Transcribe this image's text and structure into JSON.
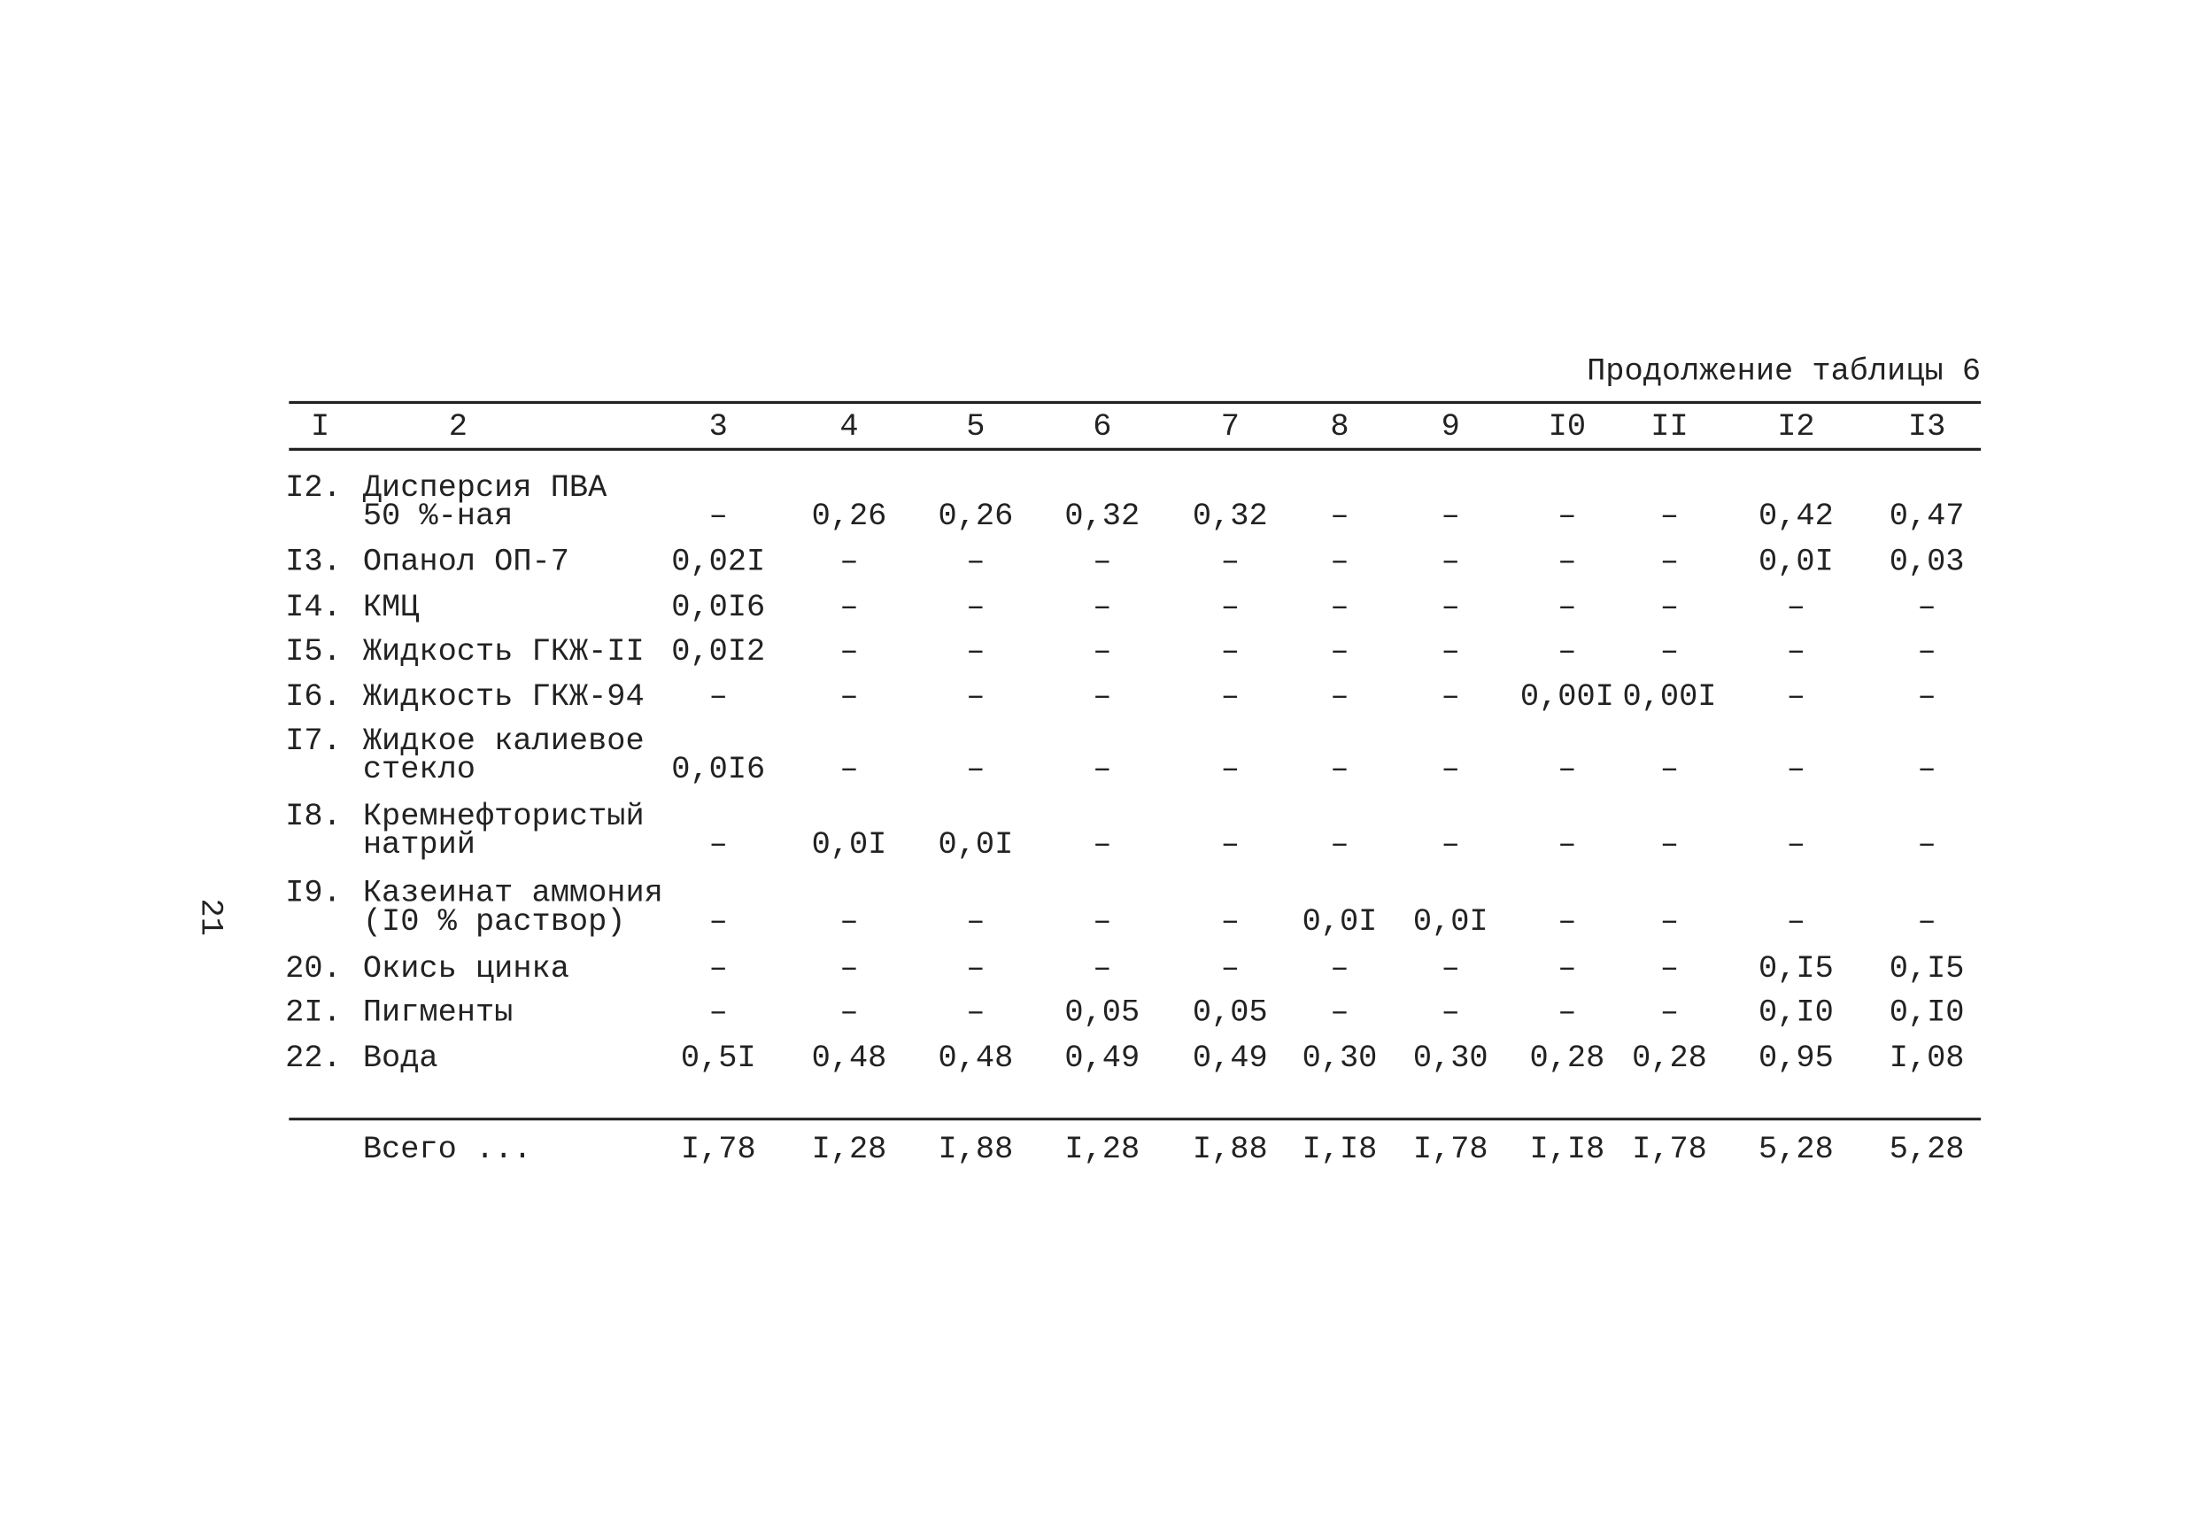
{
  "header": {
    "caption": "Продолжение таблицы 6",
    "page_number": "21"
  },
  "table": {
    "columns": [
      "I",
      "2",
      "3",
      "4",
      "5",
      "6",
      "7",
      "8",
      "9",
      "I0",
      "II",
      "I2",
      "I3"
    ],
    "rows": [
      {
        "number": "I2.",
        "name": [
          "Дисперсия ПВА",
          "50 %-ная"
        ],
        "values": [
          "–",
          "0,26",
          "0,26",
          "0,32",
          "0,32",
          "–",
          "–",
          "–",
          "–",
          "0,42",
          "0,47"
        ]
      },
      {
        "number": "I3.",
        "name": [
          "Опанол ОП-7"
        ],
        "values": [
          "0,02I",
          "–",
          "–",
          "–",
          "–",
          "–",
          "–",
          "–",
          "–",
          "0,0I",
          "0,03"
        ]
      },
      {
        "number": "I4.",
        "name": [
          "КМЦ"
        ],
        "values": [
          "0,0I6",
          "–",
          "–",
          "–",
          "–",
          "–",
          "–",
          "–",
          "–",
          "–",
          "–"
        ]
      },
      {
        "number": "I5.",
        "name": [
          "Жидкость ГКЖ-II"
        ],
        "values": [
          "0,0I2",
          "–",
          "–",
          "–",
          "–",
          "–",
          "–",
          "–",
          "–",
          "–",
          "–"
        ]
      },
      {
        "number": "I6.",
        "name": [
          "Жидкость ГКЖ-94"
        ],
        "values": [
          "–",
          "–",
          "–",
          "–",
          "–",
          "–",
          "–",
          "0,00I",
          "0,00I",
          "–",
          "–"
        ]
      },
      {
        "number": "I7.",
        "name": [
          "Жидкое калиевое",
          "стекло"
        ],
        "values": [
          "0,0I6",
          "–",
          "–",
          "–",
          "–",
          "–",
          "–",
          "–",
          "–",
          "–",
          "–"
        ]
      },
      {
        "number": "I8.",
        "name": [
          "Кремнефтористый",
          "натрий"
        ],
        "values": [
          "–",
          "0,0I",
          "0,0I",
          "–",
          "–",
          "–",
          "–",
          "–",
          "–",
          "–",
          "–"
        ]
      },
      {
        "number": "I9.",
        "name": [
          "Казеинат аммония",
          "(I0 % раствор)"
        ],
        "values": [
          "–",
          "–",
          "–",
          "–",
          "–",
          "0,0I",
          "0,0I",
          "–",
          "–",
          "–",
          "–"
        ]
      },
      {
        "number": "20.",
        "name": [
          "Окись цинка"
        ],
        "values": [
          "–",
          "–",
          "–",
          "–",
          "–",
          "–",
          "–",
          "–",
          "–",
          "0,I5",
          "0,I5"
        ]
      },
      {
        "number": "2I.",
        "name": [
          "Пигменты"
        ],
        "values": [
          "–",
          "–",
          "–",
          "0,05",
          "0,05",
          "–",
          "–",
          "–",
          "–",
          "0,I0",
          "0,I0"
        ]
      },
      {
        "number": "22.",
        "name": [
          "Вода"
        ],
        "values": [
          "0,5I",
          "0,48",
          "0,48",
          "0,49",
          "0,49",
          "0,30",
          "0,30",
          "0,28",
          "0,28",
          "0,95",
          "I,08"
        ]
      }
    ],
    "total": {
      "label": "Всего ...",
      "values": [
        "I,78",
        "I,28",
        "I,88",
        "I,28",
        "I,88",
        "I,I8",
        "I,78",
        "I,I8",
        "I,78",
        "5,28",
        "5,28"
      ]
    }
  }
}
